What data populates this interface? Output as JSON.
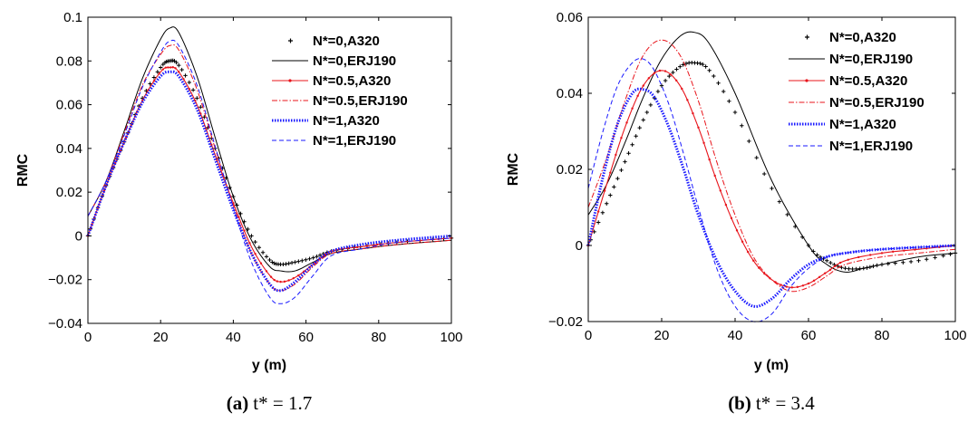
{
  "chart_data": [
    {
      "type": "line",
      "panel": "a",
      "caption_label": "(a)",
      "caption_text": "t* = 1.7",
      "xlabel": "y (m)",
      "ylabel": "RMC",
      "xlim": [
        0,
        100
      ],
      "ylim": [
        -0.04,
        0.1
      ],
      "xticks": [
        0,
        20,
        40,
        60,
        80,
        100
      ],
      "xtick_labels": [
        "0",
        "20",
        "40",
        "60",
        "80",
        "100"
      ],
      "yticks": [
        -0.04,
        -0.02,
        0,
        0.02,
        0.04,
        0.06,
        0.08,
        0.1
      ],
      "ytick_labels": [
        "−0.04",
        "−0.02",
        "0",
        "0.02",
        "0.04",
        "0.06",
        "0.08",
        "0.1"
      ],
      "legend_position": "top-right",
      "series": [
        {
          "name": "N*=0,A320",
          "color": "#000000",
          "style": "plus-markers",
          "x": [
            0,
            5,
            10,
            15,
            20,
            22.5,
            25,
            30,
            35,
            40,
            45,
            50,
            53,
            57,
            62,
            67,
            75,
            85,
            100
          ],
          "y": [
            0,
            0.023,
            0.043,
            0.063,
            0.077,
            0.08,
            0.078,
            0.063,
            0.04,
            0.018,
            0.0,
            -0.011,
            -0.013,
            -0.012,
            -0.01,
            -0.007,
            -0.005,
            -0.003,
            -0.001
          ]
        },
        {
          "name": "N*=0,ERJ190",
          "color": "#000000",
          "style": "solid",
          "x": [
            0,
            5,
            10,
            15,
            20,
            22.5,
            25,
            30,
            35,
            40,
            45,
            50,
            53,
            57,
            62,
            67,
            75,
            85,
            100
          ],
          "y": [
            0.009,
            0.025,
            0.048,
            0.072,
            0.09,
            0.095,
            0.093,
            0.073,
            0.045,
            0.018,
            -0.002,
            -0.014,
            -0.016,
            -0.016,
            -0.012,
            -0.008,
            -0.006,
            -0.004,
            -0.002
          ]
        },
        {
          "name": "N*=0.5,A320",
          "color": "#e8141b",
          "style": "solid-dots",
          "x": [
            0,
            5,
            10,
            15,
            20,
            22.5,
            25,
            30,
            35,
            40,
            45,
            50,
            53,
            57,
            62,
            67,
            75,
            85,
            100
          ],
          "y": [
            0,
            0.023,
            0.043,
            0.062,
            0.075,
            0.077,
            0.075,
            0.06,
            0.037,
            0.015,
            -0.005,
            -0.018,
            -0.021,
            -0.019,
            -0.013,
            -0.007,
            -0.005,
            -0.003,
            -0.001
          ]
        },
        {
          "name": "N*=0.5,ERJ190",
          "color": "#e8141b",
          "style": "dash-dot",
          "x": [
            0,
            5,
            10,
            15,
            20,
            22.5,
            25,
            30,
            35,
            40,
            45,
            50,
            53,
            57,
            62,
            67,
            75,
            85,
            100
          ],
          "y": [
            0.009,
            0.025,
            0.047,
            0.069,
            0.083,
            0.087,
            0.085,
            0.067,
            0.04,
            0.014,
            -0.008,
            -0.022,
            -0.025,
            -0.022,
            -0.014,
            -0.008,
            -0.006,
            -0.004,
            -0.002
          ]
        },
        {
          "name": "N*=1,A320",
          "color": "#1a1aff",
          "style": "dots",
          "x": [
            0,
            5,
            10,
            15,
            20,
            22.5,
            25,
            30,
            35,
            40,
            45,
            50,
            53,
            57,
            62,
            67,
            75,
            85,
            100
          ],
          "y": [
            0,
            0.023,
            0.043,
            0.061,
            0.073,
            0.075,
            0.073,
            0.058,
            0.035,
            0.012,
            -0.008,
            -0.022,
            -0.025,
            -0.021,
            -0.013,
            -0.007,
            -0.004,
            -0.002,
            0.0
          ]
        },
        {
          "name": "N*=1,ERJ190",
          "color": "#1a1aff",
          "style": "dashed",
          "x": [
            0,
            5,
            10,
            15,
            20,
            22.5,
            25,
            30,
            35,
            40,
            45,
            50,
            53,
            57,
            62,
            67,
            75,
            85,
            100
          ],
          "y": [
            0.009,
            0.025,
            0.046,
            0.068,
            0.084,
            0.089,
            0.087,
            0.069,
            0.041,
            0.013,
            -0.012,
            -0.028,
            -0.031,
            -0.028,
            -0.018,
            -0.009,
            -0.006,
            -0.003,
            -0.001
          ]
        }
      ]
    },
    {
      "type": "line",
      "panel": "b",
      "caption_label": "(b)",
      "caption_text": "t* = 3.4",
      "xlabel": "y (m)",
      "ylabel": "RMC",
      "xlim": [
        0,
        100
      ],
      "ylim": [
        -0.02,
        0.06
      ],
      "xticks": [
        0,
        20,
        40,
        60,
        80,
        100
      ],
      "xtick_labels": [
        "0",
        "20",
        "40",
        "60",
        "80",
        "100"
      ],
      "yticks": [
        -0.02,
        0,
        0.02,
        0.04,
        0.06
      ],
      "ytick_labels": [
        "−0.02",
        "0",
        "0.02",
        "0.04",
        "0.06"
      ],
      "legend_position": "top-right",
      "series": [
        {
          "name": "N*=0,A320",
          "color": "#000000",
          "style": "plus-markers",
          "x": [
            0,
            5,
            10,
            15,
            20,
            25,
            29,
            33,
            40,
            50,
            60,
            65,
            70,
            75,
            80,
            90,
            100
          ],
          "y": [
            0,
            0.011,
            0.022,
            0.033,
            0.042,
            0.047,
            0.048,
            0.046,
            0.035,
            0.015,
            0.0,
            -0.004,
            -0.006,
            -0.006,
            -0.005,
            -0.004,
            -0.002
          ]
        },
        {
          "name": "N*=0,ERJ190",
          "color": "#000000",
          "style": "solid",
          "x": [
            0,
            5,
            10,
            15,
            20,
            25,
            29,
            33,
            40,
            50,
            60,
            65,
            70,
            75,
            80,
            90,
            100
          ],
          "y": [
            0.008,
            0.016,
            0.027,
            0.039,
            0.049,
            0.055,
            0.056,
            0.053,
            0.04,
            0.017,
            0.0,
            -0.005,
            -0.007,
            -0.006,
            -0.005,
            -0.003,
            -0.002
          ]
        },
        {
          "name": "N*=0.5,A320",
          "color": "#e8141b",
          "style": "solid-dots",
          "x": [
            0,
            5,
            10,
            15,
            20,
            25,
            30,
            35,
            40,
            45,
            50,
            55,
            60,
            65,
            70,
            80,
            90,
            100
          ],
          "y": [
            0,
            0.016,
            0.031,
            0.042,
            0.046,
            0.042,
            0.031,
            0.017,
            0.005,
            -0.004,
            -0.009,
            -0.011,
            -0.01,
            -0.007,
            -0.004,
            -0.002,
            -0.001,
            0.0
          ]
        },
        {
          "name": "N*=0.5,ERJ190",
          "color": "#e8141b",
          "style": "dash-dot",
          "x": [
            0,
            5,
            10,
            15,
            20,
            25,
            30,
            35,
            40,
            45,
            50,
            55,
            60,
            65,
            70,
            80,
            90,
            100
          ],
          "y": [
            0.01,
            0.023,
            0.038,
            0.05,
            0.054,
            0.05,
            0.038,
            0.022,
            0.008,
            -0.003,
            -0.009,
            -0.012,
            -0.011,
            -0.008,
            -0.005,
            -0.003,
            -0.002,
            -0.001
          ]
        },
        {
          "name": "N*=1,A320",
          "color": "#1a1aff",
          "style": "dots",
          "x": [
            0,
            4,
            8,
            12,
            15,
            18,
            22,
            26,
            30,
            35,
            40,
            45,
            50,
            55,
            60,
            65,
            70,
            80,
            100
          ],
          "y": [
            0,
            0.018,
            0.032,
            0.04,
            0.041,
            0.039,
            0.031,
            0.02,
            0.008,
            -0.004,
            -0.012,
            -0.016,
            -0.014,
            -0.009,
            -0.005,
            -0.003,
            -0.002,
            -0.001,
            0.0
          ]
        },
        {
          "name": "N*=1,ERJ190",
          "color": "#1a1aff",
          "style": "dashed",
          "x": [
            0,
            4,
            8,
            12,
            15,
            18,
            22,
            26,
            30,
            35,
            40,
            45,
            50,
            55,
            60,
            65,
            70,
            80,
            100
          ],
          "y": [
            0.015,
            0.03,
            0.042,
            0.048,
            0.049,
            0.046,
            0.037,
            0.024,
            0.01,
            -0.006,
            -0.016,
            -0.02,
            -0.018,
            -0.011,
            -0.006,
            -0.003,
            -0.002,
            -0.001,
            0.0
          ]
        }
      ]
    }
  ]
}
